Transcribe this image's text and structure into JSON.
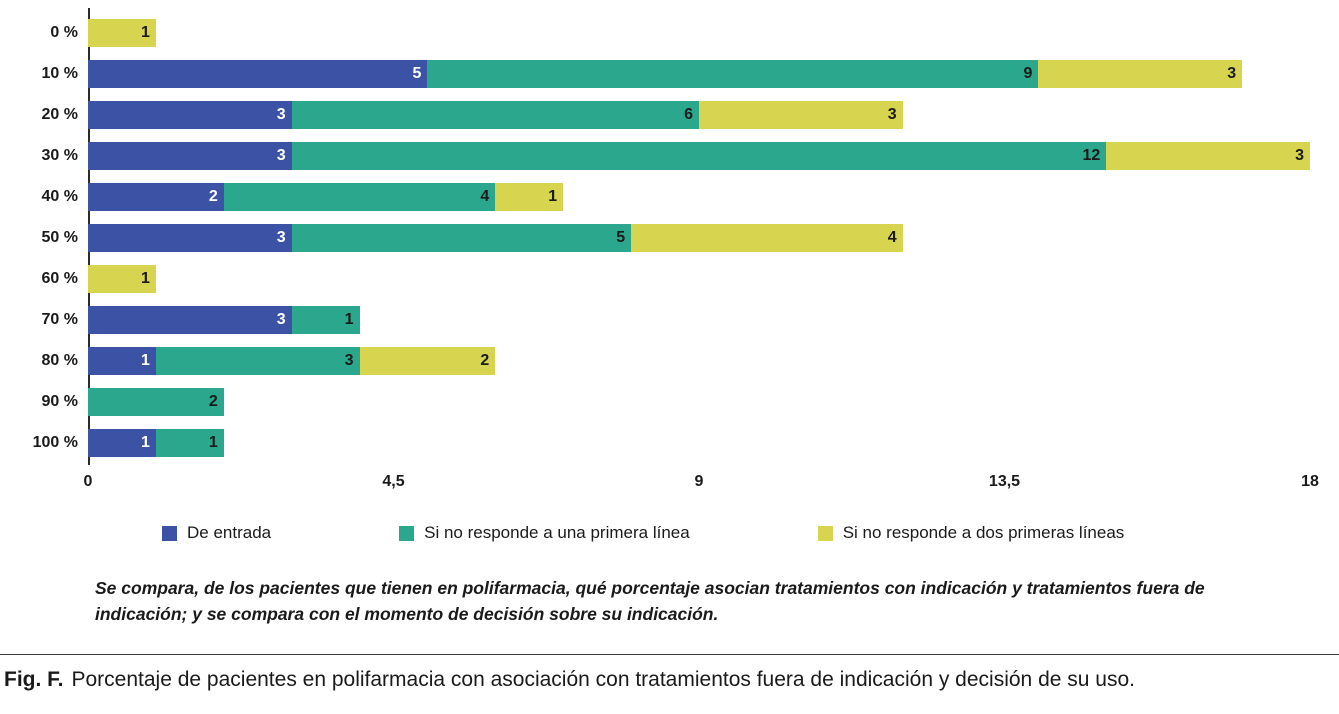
{
  "chart_data": {
    "type": "bar",
    "orientation": "horizontal",
    "stacked": true,
    "title": "",
    "xlabel": "",
    "ylabel": "",
    "categories": [
      "0 %",
      "10 %",
      "20 %",
      "30 %",
      "40 %",
      "50 %",
      "60 %",
      "70 %",
      "80 %",
      "90 %",
      "100 %"
    ],
    "series": [
      {
        "key": "de-entrada",
        "name": "De entrada",
        "color": "#3c52a4",
        "label_color": "#ffffff",
        "values": [
          0,
          5,
          3,
          3,
          2,
          3,
          0,
          3,
          1,
          0,
          1
        ]
      },
      {
        "key": "primera-linea",
        "name": "Si no responde a una primera línea",
        "color": "#2aa78d",
        "label_color": "#1a1a1a",
        "values": [
          0,
          9,
          6,
          12,
          4,
          5,
          0,
          1,
          3,
          2,
          1
        ]
      },
      {
        "key": "dos-primeras-lineas",
        "name": "Si no responde a dos primeras líneas",
        "color": "#d7d44f",
        "label_color": "#1a1a1a",
        "values": [
          1,
          3,
          3,
          3,
          1,
          4,
          1,
          0,
          2,
          0,
          0
        ]
      }
    ],
    "x_ticks": [
      "0",
      "4,5",
      "9",
      "13,5",
      "18"
    ],
    "x_tick_values": [
      0,
      4.5,
      9,
      13.5,
      18
    ],
    "xlim": [
      0,
      18
    ],
    "grid": false,
    "legend_position": "bottom"
  },
  "note": "Se compara, de los pacientes que tienen en polifarmacia, qué porcentaje asocian tratamientos con indicación y tratamientos fuera de indicación; y se compara con el momento de decisión sobre su indicación.",
  "figure": {
    "label": "Fig. F.",
    "caption": "Porcentaje de pacientes en polifarmacia con asociación con tratamientos fuera de indicación y decisión de su uso."
  }
}
